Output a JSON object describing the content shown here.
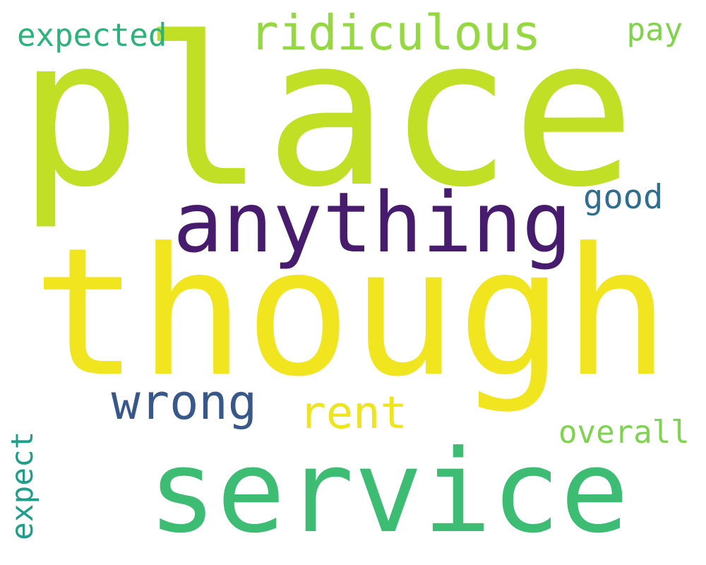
{
  "words": [
    {
      "text": "place",
      "color": "#c0df25"
    },
    {
      "text": "though",
      "color": "#f0e51e"
    },
    {
      "text": "service",
      "color": "#3dbc74"
    },
    {
      "text": "anything",
      "color": "#471b6e"
    },
    {
      "text": "ridiculous",
      "color": "#95d841"
    },
    {
      "text": "wrong",
      "color": "#38588c"
    },
    {
      "text": "rent",
      "color": "#eee51c"
    },
    {
      "text": "expected",
      "color": "#2eb27c"
    },
    {
      "text": "pay",
      "color": "#81d34d"
    },
    {
      "text": "good",
      "color": "#2f6e8e"
    },
    {
      "text": "overall",
      "color": "#7fd34e"
    },
    {
      "text": "expect",
      "color": "#1f9e89"
    }
  ]
}
